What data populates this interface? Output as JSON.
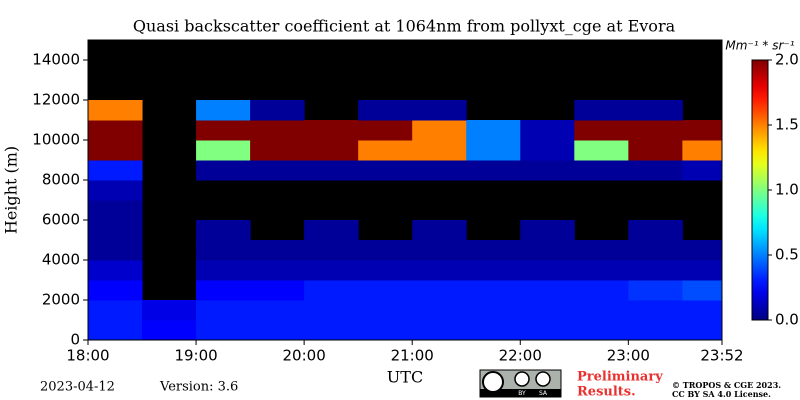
{
  "chart_data": {
    "type": "heatmap",
    "title": "Quasi backscatter coefficient at 1064nm from pollyxt_cge at Evora",
    "xlabel": "UTC",
    "ylabel": "Height (m)",
    "xlim": [
      18,
      23.8667
    ],
    "ylim": [
      0,
      15000
    ],
    "xticks": [
      {
        "value": 18,
        "label": "18:00"
      },
      {
        "value": 19,
        "label": "19:00"
      },
      {
        "value": 20,
        "label": "20:00"
      },
      {
        "value": 21,
        "label": "21:00"
      },
      {
        "value": 22,
        "label": "22:00"
      },
      {
        "value": 23,
        "label": "23:00"
      },
      {
        "value": 23.8667,
        "label": "23:52"
      }
    ],
    "yticks": [
      0,
      2000,
      4000,
      6000,
      8000,
      10000,
      12000,
      14000
    ],
    "x_edges": [
      18,
      18.5,
      19,
      19.5,
      20,
      20.5,
      21,
      21.5,
      22,
      22.5,
      23,
      23.5,
      23.8667
    ],
    "y_edges": [
      0,
      1000,
      2000,
      3000,
      4000,
      5000,
      6000,
      7000,
      8000,
      9000,
      10000,
      11000,
      12000,
      13000,
      14000,
      15000
    ],
    "z": [
      [
        0.3,
        0.25,
        0.3,
        0.3,
        0.3,
        0.3,
        0.3,
        0.3,
        0.3,
        0.3,
        0.3,
        0.3
      ],
      [
        0.3,
        0.2,
        0.3,
        0.3,
        0.3,
        0.3,
        0.3,
        0.3,
        0.3,
        0.3,
        0.3,
        0.3
      ],
      [
        0.25,
        null,
        0.25,
        0.25,
        0.3,
        0.3,
        0.3,
        0.3,
        0.3,
        0.3,
        0.35,
        0.4
      ],
      [
        0.15,
        null,
        0.1,
        0.1,
        0.1,
        0.1,
        0.1,
        0.1,
        0.1,
        0.1,
        0.1,
        0.1
      ],
      [
        0.05,
        null,
        0.05,
        0.05,
        0.05,
        0.05,
        0.05,
        0.05,
        0.05,
        0.05,
        0.05,
        0.05
      ],
      [
        0.05,
        null,
        0.05,
        null,
        0.05,
        null,
        0.05,
        null,
        0.05,
        null,
        0.05,
        null
      ],
      [
        0.05,
        null,
        null,
        null,
        null,
        null,
        null,
        null,
        null,
        null,
        null,
        null
      ],
      [
        0.1,
        null,
        null,
        null,
        null,
        null,
        null,
        null,
        null,
        null,
        null,
        null
      ],
      [
        0.3,
        null,
        0.05,
        0.05,
        0.05,
        0.05,
        0.05,
        0.05,
        0.05,
        0.05,
        0.05,
        0.1
      ],
      [
        2.0,
        null,
        1.0,
        2.0,
        2.0,
        1.5,
        1.5,
        0.5,
        0.1,
        1.0,
        2.0,
        1.5
      ],
      [
        2.0,
        null,
        2.0,
        2.0,
        2.0,
        2.0,
        1.5,
        0.5,
        0.1,
        2.0,
        2.0,
        2.0
      ],
      [
        1.5,
        null,
        0.5,
        0.05,
        null,
        0.05,
        0.05,
        null,
        null,
        0.05,
        0.05,
        null
      ],
      [
        null,
        null,
        null,
        null,
        null,
        null,
        null,
        null,
        null,
        null,
        null,
        null
      ],
      [
        null,
        null,
        null,
        null,
        null,
        null,
        null,
        null,
        null,
        null,
        null,
        null
      ],
      [
        null,
        null,
        null,
        null,
        null,
        null,
        null,
        null,
        null,
        null,
        null,
        null
      ]
    ],
    "missing_color": "#000000",
    "colormap": "jet",
    "clim": [
      0,
      2
    ],
    "cticks": [
      {
        "value": 0,
        "label": "0.0"
      },
      {
        "value": 0.5,
        "label": "0.5"
      },
      {
        "value": 1,
        "label": "1.0"
      },
      {
        "value": 1.5,
        "label": "1.5"
      },
      {
        "value": 2,
        "label": "2.0"
      }
    ],
    "clabel": "Mm⁻¹ * sr⁻¹",
    "date": "2023-04-12",
    "version": "Version: 3.6",
    "license_badge": [
      "BY",
      "SA"
    ],
    "notice": [
      "Preliminary",
      "Results."
    ],
    "copyright": [
      "© TROPOS & CGE 2023.",
      "CC BY SA 4.0 License."
    ]
  }
}
